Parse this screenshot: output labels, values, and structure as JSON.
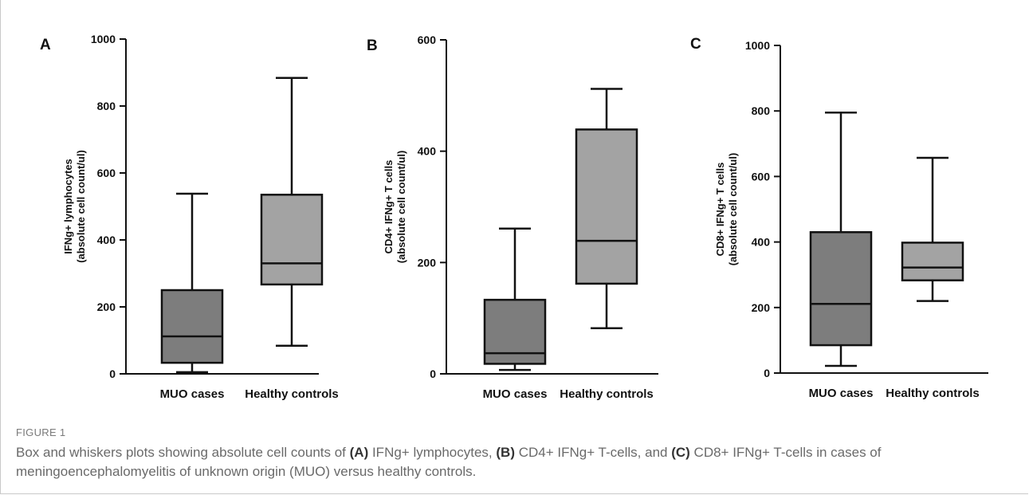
{
  "chart_data": [
    {
      "type": "box",
      "panel_label": "A",
      "ylabel_line1": "IFNg+ lymphocytes",
      "ylabel_line2": "(absolute cell count/ul)",
      "ylim": [
        0,
        1000
      ],
      "yticks": [
        0,
        200,
        400,
        600,
        800,
        1000
      ],
      "categories": [
        "MUO cases",
        "Healthy controls"
      ],
      "boxes": [
        {
          "min": 5,
          "q1": 33,
          "median": 112,
          "q3": 250,
          "max": 538,
          "color": "#7d7d7d"
        },
        {
          "min": 84,
          "q1": 267,
          "median": 330,
          "q3": 535,
          "max": 884,
          "color": "#a3a3a3"
        }
      ]
    },
    {
      "type": "box",
      "panel_label": "B",
      "ylabel_line1": "CD4+ IFNg+ T cells",
      "ylabel_line2": "(absolute cell count/ul)",
      "ylim": [
        0,
        600
      ],
      "yticks": [
        0,
        200,
        400,
        600
      ],
      "categories": [
        "MUO cases",
        "Healthy controls"
      ],
      "boxes": [
        {
          "min": 7,
          "q1": 18,
          "median": 37,
          "q3": 133,
          "max": 261,
          "color": "#7d7d7d"
        },
        {
          "min": 82,
          "q1": 162,
          "median": 239,
          "q3": 439,
          "max": 512,
          "color": "#a3a3a3"
        }
      ]
    },
    {
      "type": "box",
      "panel_label": "C",
      "ylabel_line1": "CD8+ IFNg+ T cells",
      "ylabel_line2": "(absolute cell count/ul)",
      "ylim": [
        0,
        1000
      ],
      "yticks": [
        0,
        200,
        400,
        600,
        800,
        1000
      ],
      "categories": [
        "MUO cases",
        "Healthy controls"
      ],
      "boxes": [
        {
          "min": 22,
          "q1": 85,
          "median": 211,
          "q3": 430,
          "max": 795,
          "color": "#7d7d7d"
        },
        {
          "min": 220,
          "q1": 283,
          "median": 322,
          "q3": 398,
          "max": 657,
          "color": "#a3a3a3"
        }
      ]
    }
  ],
  "caption": {
    "label": "FIGURE 1",
    "t1": "Box and whiskers plots showing absolute cell counts of ",
    "b1": "(A)",
    "t2": " IFNg+ lymphocytes, ",
    "b2": "(B)",
    "t3": " CD4+ IFNg+ T-cells, and ",
    "b3": "(C)",
    "t4": " CD8+ IFNg+ T-cells in cases of meningoencephalomyelitis of unknown origin (MUO) versus healthy controls."
  }
}
